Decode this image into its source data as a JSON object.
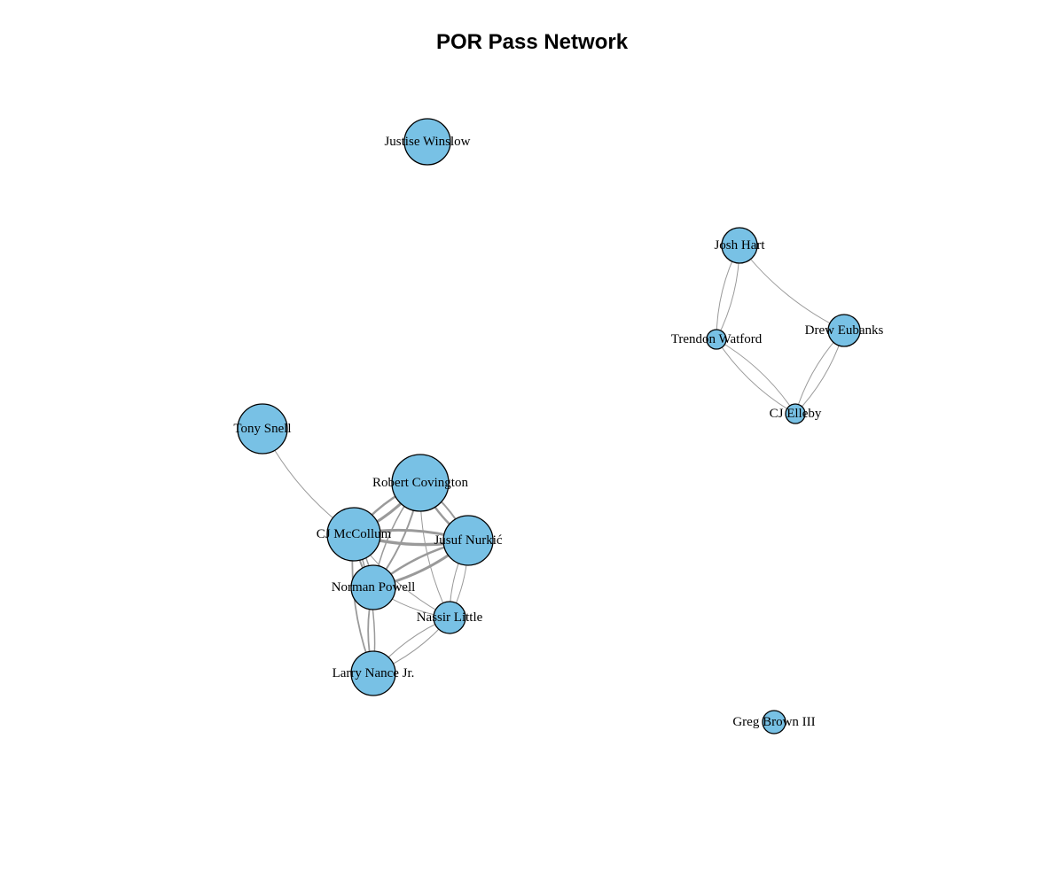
{
  "title": "POR Pass Network",
  "style": {
    "node_fill": "#78c1e5",
    "node_stroke": "#000000",
    "edge_color": "#9a9a9a"
  },
  "chart_data": {
    "type": "network",
    "title": "POR Pass Network",
    "nodes": [
      {
        "id": "justise",
        "label": "Justise Winslow"
      },
      {
        "id": "hart",
        "label": "Josh Hart"
      },
      {
        "id": "watford",
        "label": "Trendon Watford"
      },
      {
        "id": "eubanks",
        "label": "Drew Eubanks"
      },
      {
        "id": "elleby",
        "label": "CJ Elleby"
      },
      {
        "id": "snell",
        "label": "Tony Snell"
      },
      {
        "id": "covington",
        "label": "Robert Covington"
      },
      {
        "id": "mccollum",
        "label": "CJ McCollum"
      },
      {
        "id": "nurkic",
        "label": "Jusuf Nurkić"
      },
      {
        "id": "powell",
        "label": "Norman Powell"
      },
      {
        "id": "little",
        "label": "Nassir Little"
      },
      {
        "id": "nance",
        "label": "Larry Nance Jr."
      },
      {
        "id": "brown",
        "label": "Greg Brown III"
      }
    ],
    "edges": [
      {
        "source": "hart",
        "target": "watford"
      },
      {
        "source": "watford",
        "target": "hart"
      },
      {
        "source": "hart",
        "target": "eubanks"
      },
      {
        "source": "watford",
        "target": "elleby"
      },
      {
        "source": "elleby",
        "target": "watford"
      },
      {
        "source": "eubanks",
        "target": "elleby"
      },
      {
        "source": "elleby",
        "target": "eubanks"
      },
      {
        "source": "snell",
        "target": "mccollum"
      },
      {
        "source": "mccollum",
        "target": "covington"
      },
      {
        "source": "covington",
        "target": "mccollum"
      },
      {
        "source": "mccollum",
        "target": "nurkic"
      },
      {
        "source": "nurkic",
        "target": "mccollum"
      },
      {
        "source": "covington",
        "target": "nurkic"
      },
      {
        "source": "nurkic",
        "target": "covington"
      },
      {
        "source": "powell",
        "target": "covington"
      },
      {
        "source": "covington",
        "target": "powell"
      },
      {
        "source": "powell",
        "target": "nurkic"
      },
      {
        "source": "nurkic",
        "target": "powell"
      },
      {
        "source": "mccollum",
        "target": "powell"
      },
      {
        "source": "powell",
        "target": "mccollum"
      },
      {
        "source": "mccollum",
        "target": "little"
      },
      {
        "source": "powell",
        "target": "little"
      },
      {
        "source": "covington",
        "target": "little"
      },
      {
        "source": "little",
        "target": "nurkic"
      },
      {
        "source": "nurkic",
        "target": "little"
      },
      {
        "source": "mccollum",
        "target": "nance"
      },
      {
        "source": "nance",
        "target": "mccollum"
      },
      {
        "source": "powell",
        "target": "nance"
      },
      {
        "source": "nance",
        "target": "little"
      },
      {
        "source": "little",
        "target": "nance"
      }
    ]
  }
}
